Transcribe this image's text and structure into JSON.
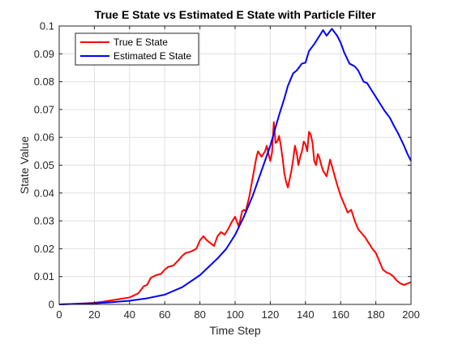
{
  "chart_data": {
    "type": "line",
    "title": "True E State vs Estimated E State with Particle Filter",
    "xlabel": "Time Step",
    "ylabel": "State Value",
    "xlim": [
      0,
      200
    ],
    "ylim": [
      0,
      0.1
    ],
    "x_ticks": [
      "0",
      "20",
      "40",
      "60",
      "80",
      "100",
      "120",
      "140",
      "160",
      "180",
      "200"
    ],
    "y_ticks": [
      "0",
      "0.01",
      "0.02",
      "0.03",
      "0.04",
      "0.05",
      "0.06",
      "0.07",
      "0.08",
      "0.09",
      "0.1"
    ],
    "grid": true,
    "legend_position": "top-left",
    "series": [
      {
        "name": "True E State",
        "color": "#ff0000",
        "x": [
          0,
          10,
          20,
          25,
          30,
          35,
          40,
          45,
          48,
          50,
          52,
          55,
          58,
          60,
          62,
          65,
          68,
          70,
          72,
          75,
          78,
          80,
          82,
          84,
          86,
          88,
          90,
          92,
          94,
          96,
          98,
          100,
          102,
          103,
          104,
          105,
          106,
          108,
          110,
          112,
          113,
          114,
          115,
          117,
          118,
          119,
          120,
          121,
          122,
          123,
          124,
          125,
          126,
          127,
          128,
          129,
          130,
          131,
          132,
          133,
          134,
          135,
          136,
          137,
          138,
          139,
          140,
          141,
          142,
          143,
          144,
          145,
          146,
          147,
          148,
          149,
          150,
          152,
          154,
          156,
          158,
          160,
          162,
          164,
          166,
          168,
          170,
          172,
          174,
          176,
          178,
          180,
          182,
          184,
          186,
          188,
          190,
          192,
          194,
          196,
          198,
          200
        ],
        "values": [
          0,
          0.0002,
          0.0006,
          0.001,
          0.0015,
          0.002,
          0.0025,
          0.004,
          0.0065,
          0.007,
          0.0095,
          0.0105,
          0.011,
          0.0125,
          0.0135,
          0.014,
          0.016,
          0.0175,
          0.0185,
          0.019,
          0.02,
          0.023,
          0.0245,
          0.023,
          0.022,
          0.021,
          0.0245,
          0.026,
          0.025,
          0.027,
          0.0295,
          0.0315,
          0.028,
          0.0305,
          0.0335,
          0.034,
          0.0335,
          0.0385,
          0.0455,
          0.0525,
          0.055,
          0.054,
          0.053,
          0.055,
          0.057,
          0.054,
          0.0515,
          0.0545,
          0.0655,
          0.058,
          0.0585,
          0.0605,
          0.057,
          0.0525,
          0.047,
          0.044,
          0.042,
          0.045,
          0.048,
          0.052,
          0.057,
          0.0545,
          0.05,
          0.053,
          0.055,
          0.0585,
          0.0575,
          0.055,
          0.062,
          0.061,
          0.058,
          0.0515,
          0.05,
          0.054,
          0.0525,
          0.05,
          0.048,
          0.046,
          0.052,
          0.0475,
          0.043,
          0.039,
          0.036,
          0.033,
          0.034,
          0.03,
          0.027,
          0.0255,
          0.024,
          0.022,
          0.02,
          0.0185,
          0.0155,
          0.0125,
          0.0115,
          0.011,
          0.01,
          0.0085,
          0.0075,
          0.007,
          0.0075,
          0.008
        ]
      },
      {
        "name": "Estimated E State",
        "color": "#0000ff",
        "x": [
          0,
          10,
          20,
          30,
          40,
          50,
          60,
          70,
          80,
          90,
          95,
          100,
          105,
          110,
          115,
          120,
          125,
          128,
          130,
          133,
          135,
          138,
          140,
          142,
          145,
          148,
          150,
          152,
          155,
          158,
          160,
          162,
          165,
          168,
          170,
          173,
          175,
          178,
          180,
          183,
          185,
          188,
          190,
          193,
          196,
          198,
          200
        ],
        "values": [
          0,
          0.0002,
          0.0004,
          0.0008,
          0.0013,
          0.0022,
          0.0035,
          0.0062,
          0.0105,
          0.0165,
          0.02,
          0.025,
          0.0315,
          0.039,
          0.048,
          0.057,
          0.068,
          0.074,
          0.0785,
          0.083,
          0.084,
          0.0865,
          0.0868,
          0.091,
          0.0935,
          0.0965,
          0.0985,
          0.0965,
          0.099,
          0.0965,
          0.094,
          0.0905,
          0.0865,
          0.0855,
          0.084,
          0.08,
          0.0795,
          0.0765,
          0.0745,
          0.0715,
          0.0695,
          0.067,
          0.0645,
          0.061,
          0.057,
          0.054,
          0.0515
        ]
      }
    ]
  }
}
